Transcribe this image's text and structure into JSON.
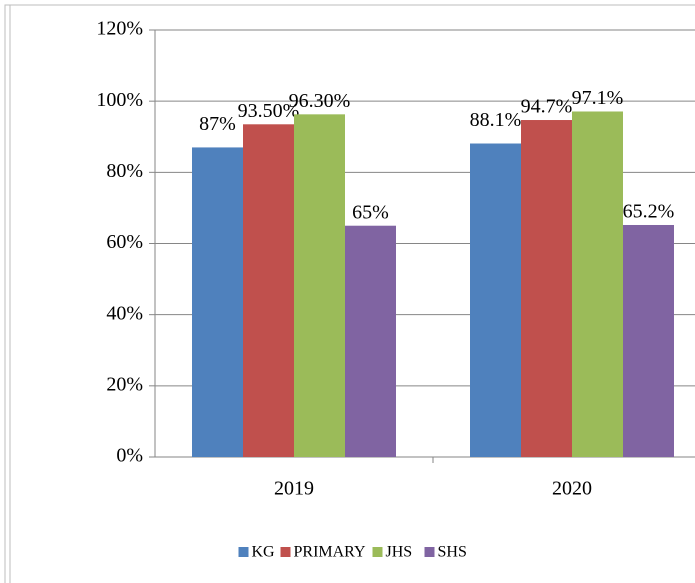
{
  "chart_data": {
    "type": "bar",
    "categories": [
      "2019",
      "2020"
    ],
    "series": [
      {
        "name": "KG",
        "color": "#4f81bd",
        "values": [
          87,
          88.1
        ],
        "value_labels": [
          "87%",
          "88.1%"
        ]
      },
      {
        "name": "PRIMARY",
        "color": "#c0504d",
        "values": [
          93.5,
          94.7
        ],
        "value_labels": [
          "93.50%",
          "94.7%"
        ]
      },
      {
        "name": "JHS",
        "color": "#9bbb59",
        "values": [
          96.3,
          97.1
        ],
        "value_labels": [
          "96.30%",
          "97.1%"
        ]
      },
      {
        "name": "SHS",
        "color": "#8064a2",
        "values": [
          65,
          65.2
        ],
        "value_labels": [
          "65%",
          "65.2%"
        ]
      }
    ],
    "ylim": [
      0,
      120
    ],
    "yticks": [
      {
        "value": 0,
        "label": "0%"
      },
      {
        "value": 20,
        "label": "20%"
      },
      {
        "value": 40,
        "label": "40%"
      },
      {
        "value": 60,
        "label": "60%"
      },
      {
        "value": 80,
        "label": "80%"
      },
      {
        "value": 100,
        "label": "100%"
      },
      {
        "value": 120,
        "label": "120%"
      }
    ],
    "grid": true,
    "legend": "bottom"
  }
}
